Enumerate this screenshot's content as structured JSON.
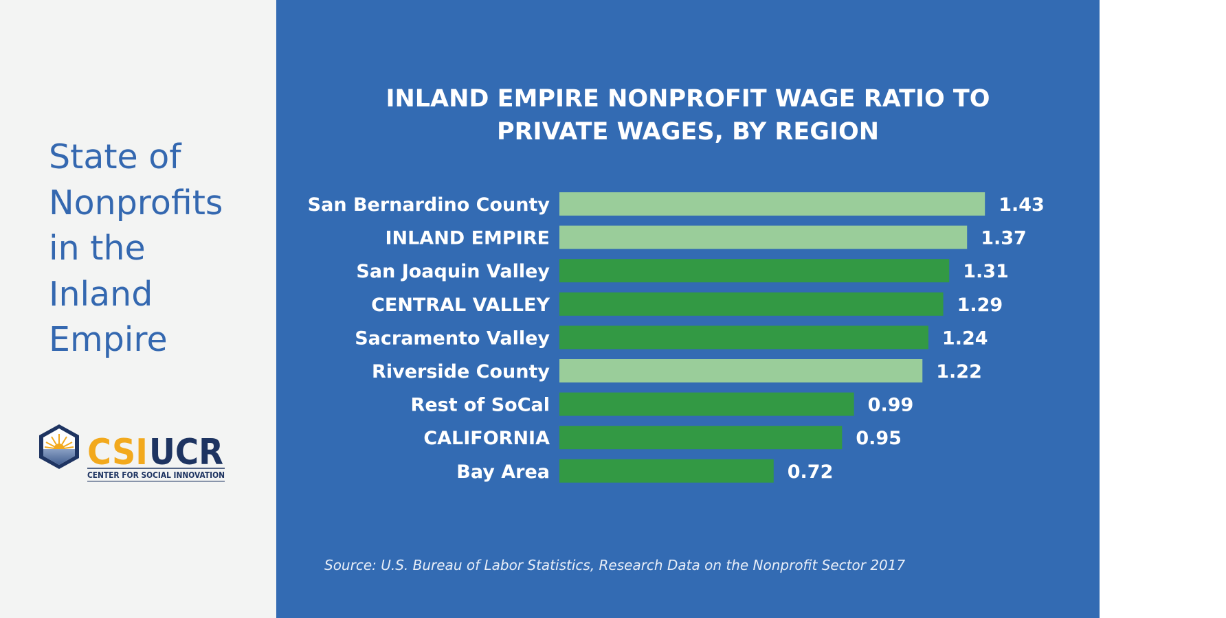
{
  "sidebar": {
    "title_lines": [
      "State of",
      "Nonprofits",
      "in the",
      "Inland",
      "Empire"
    ],
    "logo": {
      "text_a": "CSI",
      "text_b": "UCR",
      "subtitle": "CENTER FOR SOCIAL INNOVATION"
    }
  },
  "colors": {
    "panel": "#336bb3",
    "highlight": "#9acd9a",
    "bar": "#339944",
    "side_title": "#3468b0",
    "logo_gold": "#f2a91d",
    "logo_navy": "#1e3461"
  },
  "chart_data": {
    "type": "bar",
    "orientation": "horizontal",
    "title_lines": [
      "INLAND EMPIRE NONPROFIT WAGE RATIO TO",
      "PRIVATE WAGES, BY REGION"
    ],
    "categories": [
      "San Bernardino County",
      "INLAND EMPIRE",
      "San Joaquin Valley",
      "CENTRAL VALLEY",
      "Sacramento Valley",
      "Riverside County",
      "Rest of SoCal",
      "CALIFORNIA",
      "Bay Area"
    ],
    "values": [
      1.43,
      1.37,
      1.31,
      1.29,
      1.24,
      1.22,
      0.99,
      0.95,
      0.72
    ],
    "value_labels": [
      "1.43",
      "1.37",
      "1.31",
      "1.29",
      "1.24",
      "1.22",
      "0.99",
      "0.95",
      "0.72"
    ],
    "highlighted": [
      true,
      true,
      false,
      false,
      false,
      true,
      false,
      false,
      false
    ],
    "xlim": [
      0,
      1.43
    ],
    "grid": false,
    "source": "Source: U.S. Bureau of Labor Statistics, Research Data on the Nonprofit Sector 2017"
  }
}
